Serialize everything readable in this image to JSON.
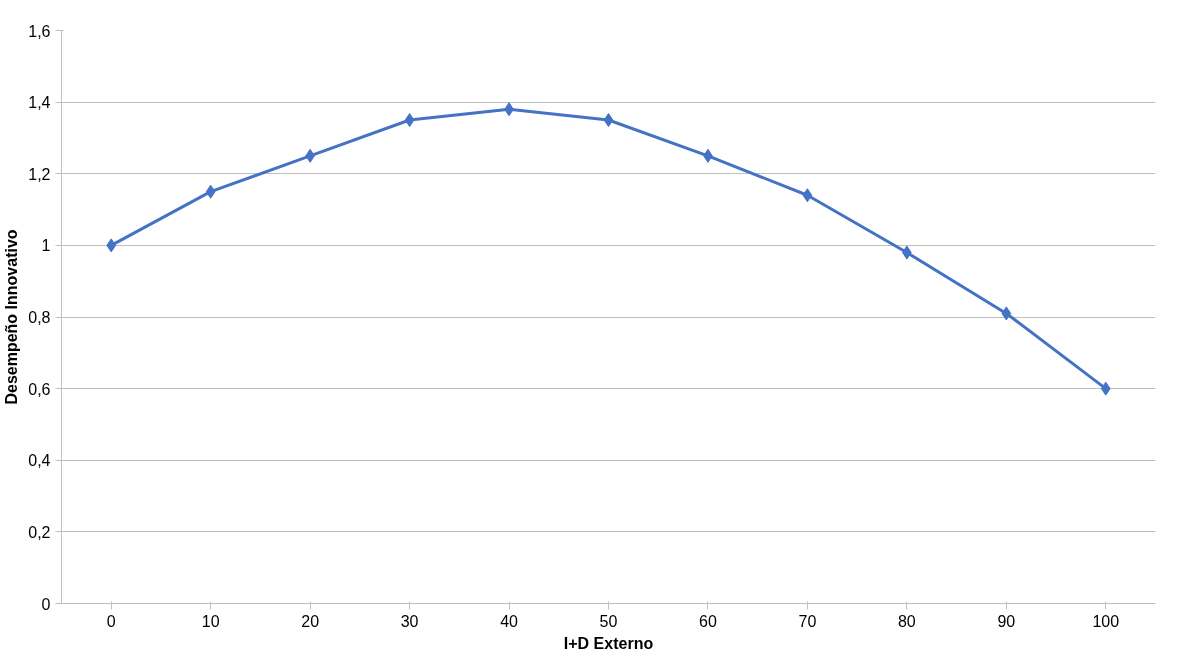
{
  "chart_data": {
    "type": "line",
    "xlabel": "I+D Externo",
    "ylabel": "Desempeño Innovativo",
    "categories": [
      "0",
      "10",
      "20",
      "30",
      "40",
      "50",
      "60",
      "70",
      "80",
      "90",
      "100"
    ],
    "series": [
      {
        "color": "#4472c4",
        "values": [
          1.0,
          1.15,
          1.25,
          1.35,
          1.38,
          1.35,
          1.25,
          1.14,
          0.98,
          0.81,
          0.6
        ]
      }
    ],
    "ylim": [
      0,
      1.6
    ],
    "yticks": [
      0,
      {
        "value": 0.2,
        "label": "0,2"
      },
      {
        "value": 0.4,
        "label": "0,4"
      },
      {
        "value": 0.6,
        "label": "0,6"
      },
      {
        "value": 0.8,
        "label": "0,8"
      },
      1,
      {
        "value": 1.2,
        "label": "1,2"
      },
      {
        "value": 1.4,
        "label": "1,4"
      },
      {
        "value": 1.6,
        "label": "1,6"
      }
    ],
    "grid": "y",
    "marker": "diamond",
    "line_style": "solid"
  }
}
